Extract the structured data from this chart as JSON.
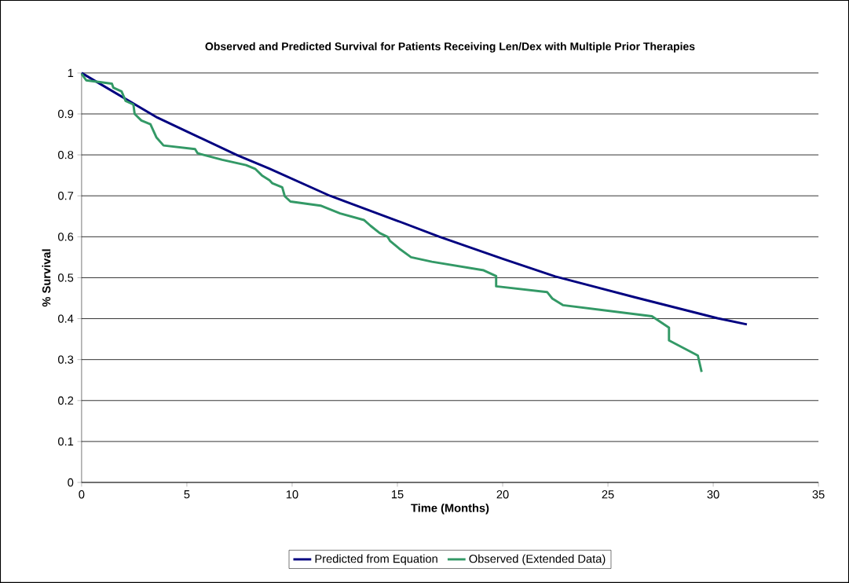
{
  "chart_data": {
    "type": "line",
    "title": "Observed and Predicted Survival for Patients Receiving Len/Dex with Multiple Prior Therapies",
    "xlabel": "Time (Months)",
    "ylabel": "% Survival",
    "xlim": [
      0,
      35
    ],
    "xticks": [
      0,
      5,
      10,
      15,
      20,
      25,
      30,
      35
    ],
    "ylim": [
      0,
      1
    ],
    "yticks": [
      0,
      0.1,
      0.2,
      0.3,
      0.4,
      0.5,
      0.6,
      0.7,
      0.8,
      0.9,
      1
    ],
    "grid": "y",
    "legend": "bottom",
    "series": [
      {
        "name": "Predicted from Equation",
        "color": "#000080",
        "x": [
          0,
          3.6,
          5,
          7.4,
          8.9,
          11.8,
          15,
          17,
          20,
          22.5,
          26.3,
          30.2,
          31.6
        ],
        "values": [
          1,
          0.891,
          0.857,
          0.799,
          0.767,
          0.7,
          0.639,
          0.6,
          0.546,
          0.503,
          0.452,
          0.401,
          0.386
        ]
      },
      {
        "name": "Observed (Extended Data)",
        "color": "#339966",
        "x": [
          0,
          0.22,
          1.44,
          1.51,
          1.9,
          2.09,
          2.46,
          2.52,
          2.84,
          3.27,
          3.55,
          3.89,
          5.39,
          5.51,
          6.68,
          7.81,
          8.24,
          8.56,
          8.93,
          9.05,
          9.53,
          9.65,
          9.92,
          11.35,
          12.28,
          13.41,
          13.72,
          14.16,
          14.53,
          14.65,
          15.09,
          15.65,
          16.64,
          19.1,
          19.69,
          19.69,
          22.11,
          22.36,
          22.86,
          27.09,
          27.9,
          27.9,
          29.27,
          29.45
        ],
        "values": [
          0.998,
          0.982,
          0.974,
          0.964,
          0.955,
          0.932,
          0.923,
          0.9,
          0.884,
          0.875,
          0.843,
          0.823,
          0.814,
          0.804,
          0.788,
          0.775,
          0.766,
          0.75,
          0.738,
          0.731,
          0.721,
          0.699,
          0.686,
          0.676,
          0.657,
          0.641,
          0.627,
          0.609,
          0.6,
          0.59,
          0.571,
          0.55,
          0.539,
          0.518,
          0.504,
          0.479,
          0.465,
          0.449,
          0.433,
          0.406,
          0.378,
          0.347,
          0.31,
          0.27
        ]
      }
    ]
  }
}
